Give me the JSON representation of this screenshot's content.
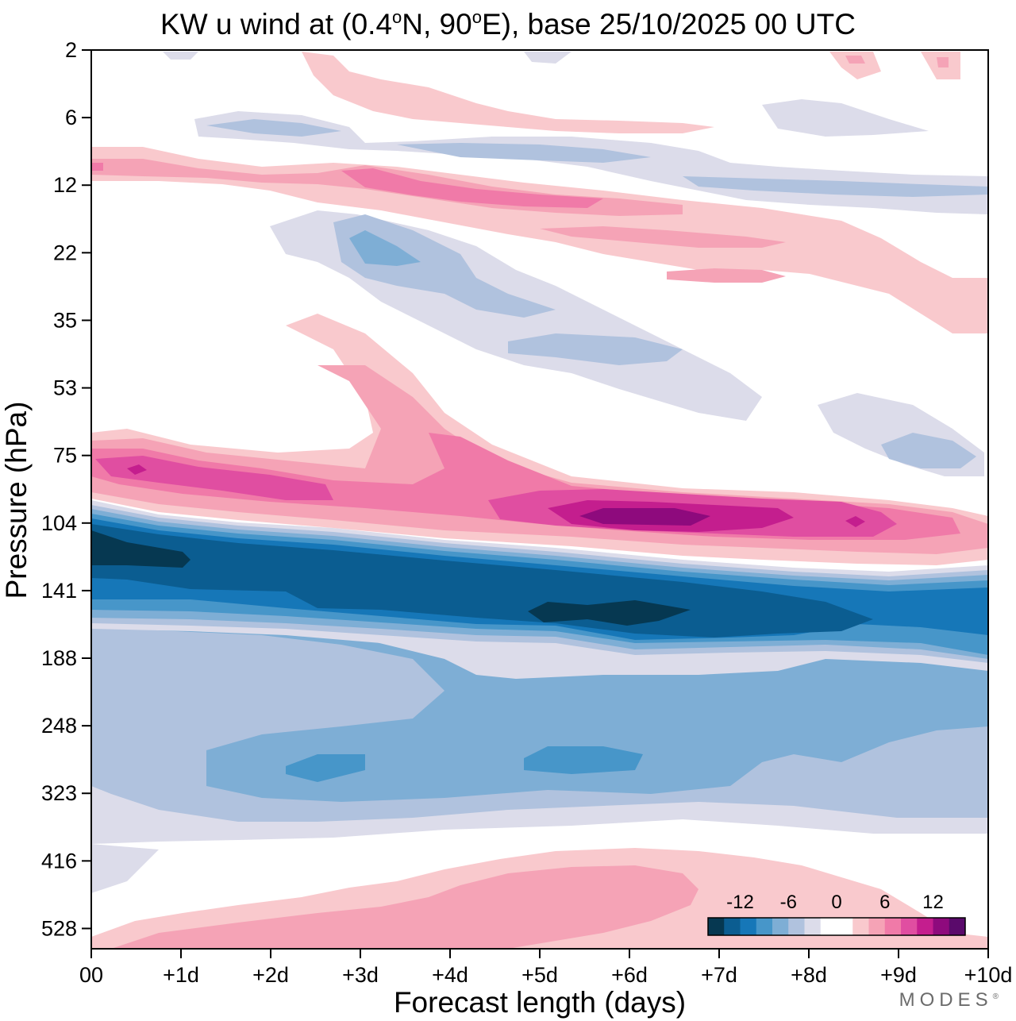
{
  "title": {
    "prefix": "KW u wind at (0.4",
    "deg": "o",
    "mid": "N, 90",
    "suffix": "E),  base 25/10/2025  00 UTC"
  },
  "watermark": {
    "text": "MODES",
    "mark": "®"
  },
  "chart_data": {
    "type": "heatmap",
    "variable": "Kelvin-wave u wind",
    "xlabel": "Forecast length (days)",
    "ylabel": "Pressure (hPa)",
    "x_range_days": [
      0,
      10
    ],
    "x_ticks": [
      {
        "value": 0,
        "label": "00"
      },
      {
        "value": 1,
        "label": "+1d"
      },
      {
        "value": 2,
        "label": "+2d"
      },
      {
        "value": 3,
        "label": "+3d"
      },
      {
        "value": 4,
        "label": "+4d"
      },
      {
        "value": 5,
        "label": "+5d"
      },
      {
        "value": 6,
        "label": "+6d"
      },
      {
        "value": 7,
        "label": "+7d"
      },
      {
        "value": 8,
        "label": "+8d"
      },
      {
        "value": 9,
        "label": "+9d"
      },
      {
        "value": 10,
        "label": "+10d"
      }
    ],
    "y_levels_hpa": [
      2,
      6,
      12,
      22,
      35,
      53,
      75,
      104,
      141,
      188,
      248,
      323,
      416,
      528
    ],
    "y_top_level_index": 0,
    "y_bottom_level_index": 13.3,
    "colorbar": {
      "levels": [
        -14,
        -12,
        -10,
        -8,
        -6,
        -4,
        -2,
        0,
        2,
        4,
        6,
        8,
        10,
        12,
        14
      ],
      "tick_labels": [
        {
          "value": -12,
          "label": "-12"
        },
        {
          "value": -6,
          "label": "-6"
        },
        {
          "value": 0,
          "label": "0"
        },
        {
          "value": 6,
          "label": "6"
        },
        {
          "value": 12,
          "label": "12"
        }
      ],
      "colors": [
        "#063851",
        "#0b5d91",
        "#1677b8",
        "#4796c9",
        "#7eaed5",
        "#b0c2de",
        "#dcdcea",
        "#ffffff",
        "#ffffff",
        "#f9c9cd",
        "#f5a3b6",
        "#f07aa8",
        "#e04ea1",
        "#c41e8e",
        "#8e0a7d",
        "#5a0a6b"
      ]
    },
    "features": [
      {
        "name": "Strong easterly core near 120-150 hPa",
        "value_ms": -14,
        "x_days": [
          0,
          7.5
        ],
        "p_hpa": [
          115,
          170
        ]
      },
      {
        "name": "Strong westerly core near 90-110 hPa",
        "value_ms": 13,
        "x_days": [
          5.5,
          7.0
        ],
        "p_hpa": [
          95,
          110
        ]
      },
      {
        "name": "Westerly band near 75 hPa",
        "value_ms": 10,
        "x_days": [
          0,
          3
        ],
        "p_hpa": [
          65,
          90
        ]
      },
      {
        "name": "Westerly band near 12 hPa",
        "value_ms": 8,
        "x_days": [
          3,
          6
        ],
        "p_hpa": [
          11,
          15
        ]
      },
      {
        "name": "Easterlies 200-350 hPa",
        "value_ms": -8,
        "x_days": [
          1.3,
          7.0
        ],
        "p_hpa": [
          250,
          300
        ]
      },
      {
        "name": "Weak westerlies near 500 hPa",
        "value_ms": 3,
        "x_days": [
          0,
          9.5
        ],
        "p_hpa": [
          430,
          560
        ]
      }
    ]
  }
}
